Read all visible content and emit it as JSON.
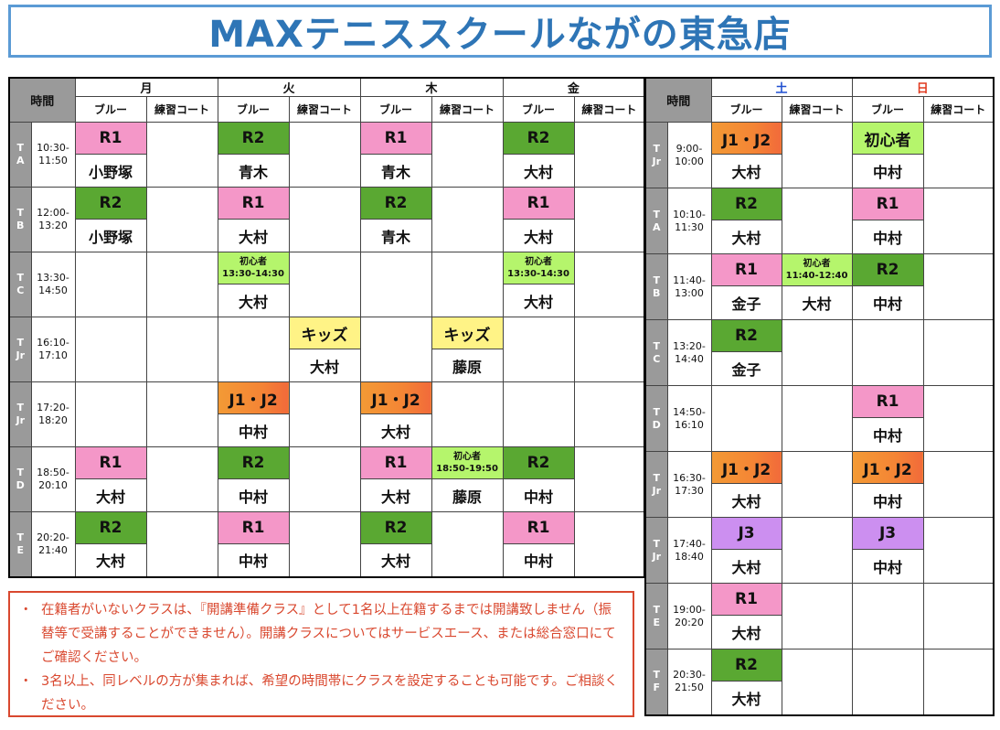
{
  "title": "MAXテニススクールながの東急店",
  "headers": {
    "time_label": "時間",
    "blue": "ブルー",
    "practice": "練習コート"
  },
  "days": {
    "mon": "月",
    "tue": "火",
    "thu": "木",
    "fri": "金",
    "sat": "土",
    "sun": "日"
  },
  "colors": {
    "pink": "#f497c8",
    "green": "#5aa832",
    "lime": "#b5f56c",
    "yellow": "#fff386",
    "orange": "#f48535",
    "purple": "#cc8ff0",
    "header_gray": "#9a9a9a",
    "title_blue": "#2e75b6",
    "note_red": "#d9482f"
  },
  "weekday": {
    "rows": [
      {
        "code": "T\nA",
        "time": "10:30-\n11:50",
        "cells": [
          {
            "level": "R1",
            "color": "pink",
            "coach": "小野塚"
          },
          null,
          {
            "level": "R2",
            "color": "green",
            "coach": "青木"
          },
          null,
          {
            "level": "R1",
            "color": "pink",
            "coach": "青木"
          },
          null,
          {
            "level": "R2",
            "color": "green",
            "coach": "大村"
          },
          null
        ]
      },
      {
        "code": "T\nB",
        "time": "12:00-\n13:20",
        "cells": [
          {
            "level": "R2",
            "color": "green",
            "coach": "小野塚"
          },
          null,
          {
            "level": "R1",
            "color": "pink",
            "coach": "大村"
          },
          null,
          {
            "level": "R2",
            "color": "green",
            "coach": "青木"
          },
          null,
          {
            "level": "R1",
            "color": "pink",
            "coach": "大村"
          },
          null
        ]
      },
      {
        "code": "T\nC",
        "time": "13:30-\n14:50",
        "cells": [
          null,
          null,
          {
            "level": "初心者\n13:30-14:30",
            "color": "lime",
            "coach": "大村",
            "small": true
          },
          null,
          null,
          null,
          {
            "level": "初心者\n13:30-14:30",
            "color": "lime",
            "coach": "大村",
            "small": true
          },
          null
        ]
      },
      {
        "code": "T\nJr",
        "time": "16:10-\n17:10",
        "cells": [
          null,
          null,
          null,
          {
            "level": "キッズ",
            "color": "yellow",
            "coach": "大村"
          },
          null,
          {
            "level": "キッズ",
            "color": "yellow",
            "coach": "藤原"
          },
          null,
          null
        ]
      },
      {
        "code": "T\nJr",
        "time": "17:20-\n18:20",
        "cells": [
          null,
          null,
          {
            "level": "J1・J2",
            "color": "orange",
            "coach": "中村"
          },
          null,
          {
            "level": "J1・J2",
            "color": "orange",
            "coach": "大村"
          },
          null,
          null,
          null
        ]
      },
      {
        "code": "T\nD",
        "time": "18:50-\n20:10",
        "cells": [
          {
            "level": "R1",
            "color": "pink",
            "coach": "大村"
          },
          null,
          {
            "level": "R2",
            "color": "green",
            "coach": "中村"
          },
          null,
          {
            "level": "R1",
            "color": "pink",
            "coach": "大村"
          },
          {
            "level": "初心者\n18:50-19:50",
            "color": "lime",
            "coach": "藤原",
            "small": true
          },
          {
            "level": "R2",
            "color": "green",
            "coach": "中村"
          },
          null
        ]
      },
      {
        "code": "T\nE",
        "time": "20:20-\n21:40",
        "cells": [
          {
            "level": "R2",
            "color": "green",
            "coach": "大村"
          },
          null,
          {
            "level": "R1",
            "color": "pink",
            "coach": "中村"
          },
          null,
          {
            "level": "R2",
            "color": "green",
            "coach": "大村"
          },
          null,
          {
            "level": "R1",
            "color": "pink",
            "coach": "中村"
          },
          null
        ]
      }
    ]
  },
  "weekend": {
    "rows": [
      {
        "code": "T\nJr",
        "time": "9:00-\n10:00",
        "cells": [
          {
            "level": "J1・J2",
            "color": "orange",
            "coach": "大村"
          },
          null,
          {
            "level": "初心者",
            "color": "lime",
            "coach": "中村"
          },
          null
        ]
      },
      {
        "code": "T\nA",
        "time": "10:10-\n11:30",
        "cells": [
          {
            "level": "R2",
            "color": "green",
            "coach": "大村"
          },
          null,
          {
            "level": "R1",
            "color": "pink",
            "coach": "中村"
          },
          null
        ]
      },
      {
        "code": "T\nB",
        "time": "11:40-\n13:00",
        "cells": [
          {
            "level": "R1",
            "color": "pink",
            "coach": "金子"
          },
          {
            "level": "初心者\n11:40-12:40",
            "color": "lime",
            "coach": "大村",
            "small": true
          },
          {
            "level": "R2",
            "color": "green",
            "coach": "中村"
          },
          null
        ]
      },
      {
        "code": "T\nC",
        "time": "13:20-\n14:40",
        "cells": [
          {
            "level": "R2",
            "color": "green",
            "coach": "金子"
          },
          null,
          null,
          null
        ]
      },
      {
        "code": "T\nD",
        "time": "14:50-\n16:10",
        "cells": [
          null,
          null,
          {
            "level": "R1",
            "color": "pink",
            "coach": "中村"
          },
          null
        ]
      },
      {
        "code": "T\nJr",
        "time": "16:30-\n17:30",
        "cells": [
          {
            "level": "J1・J2",
            "color": "orange",
            "coach": "大村"
          },
          null,
          {
            "level": "J1・J2",
            "color": "orange",
            "coach": "中村"
          },
          null
        ]
      },
      {
        "code": "T\nJr",
        "time": "17:40-\n18:40",
        "cells": [
          {
            "level": "J3",
            "color": "purple",
            "coach": "大村"
          },
          null,
          {
            "level": "J3",
            "color": "purple",
            "coach": "中村"
          },
          null
        ]
      },
      {
        "code": "T\nE",
        "time": "19:00-\n20:20",
        "cells": [
          {
            "level": "R1",
            "color": "pink",
            "coach": "大村"
          },
          null,
          null,
          null
        ]
      },
      {
        "code": "T\nF",
        "time": "20:30-\n21:50",
        "cells": [
          {
            "level": "R2",
            "color": "green",
            "coach": "大村"
          },
          null,
          null,
          null
        ]
      }
    ]
  },
  "notes": [
    "在籍者がいないクラスは、『開講準備クラス』として1名以上在籍するまでは開講致しません（振替等で受講することができません）。開講クラスについてはサービスエース、または総合窓口にてご確認ください。",
    "3名以上、同レベルの方が集まれば、希望の時間帯にクラスを設定することも可能です。ご相談ください。"
  ],
  "note_bullet": "・"
}
